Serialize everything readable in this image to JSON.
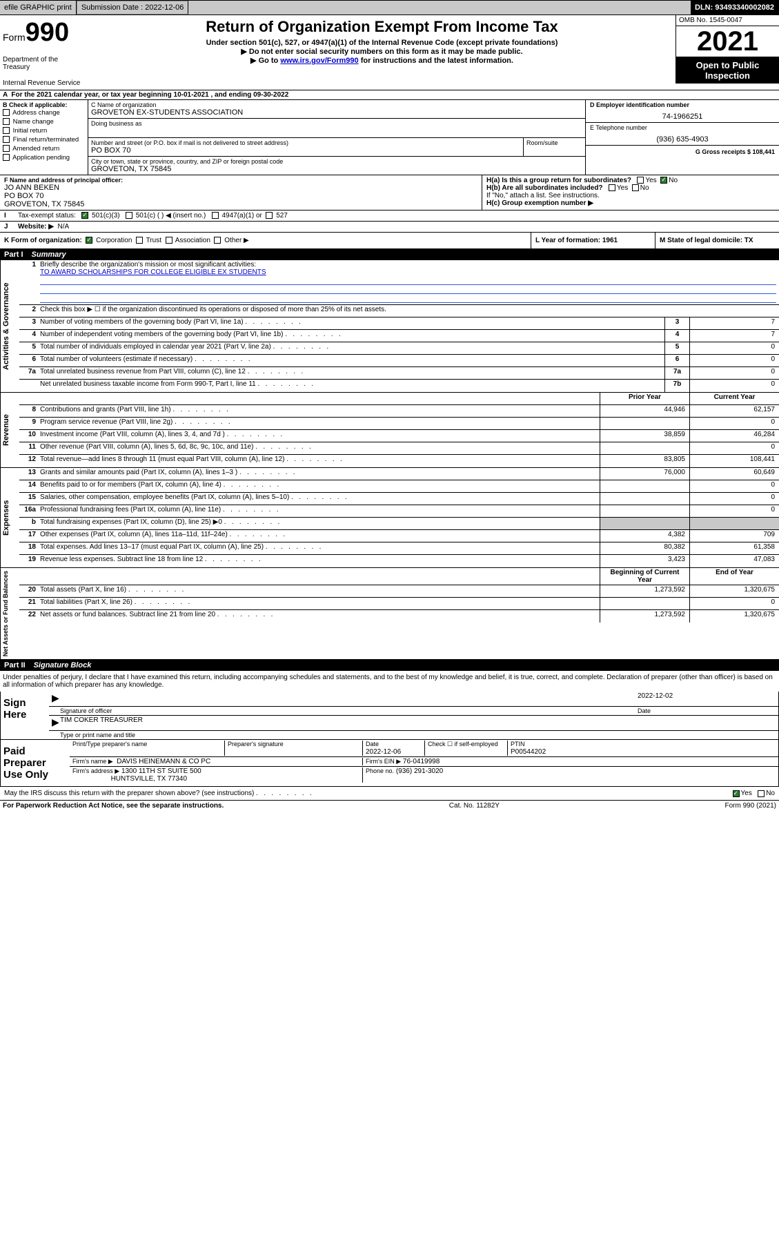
{
  "topbar": {
    "efile": "efile GRAPHIC print",
    "submission_label": "Submission Date : 2022-12-06",
    "dln_label": "DLN: 93493340002082"
  },
  "header": {
    "form_label": "Form",
    "form_number": "990",
    "title": "Return of Organization Exempt From Income Tax",
    "subtitle": "Under section 501(c), 527, or 4947(a)(1) of the Internal Revenue Code (except private foundations)",
    "line2": "Do not enter social security numbers on this form as it may be made public.",
    "line3_prefix": "Go to ",
    "line3_link": "www.irs.gov/Form990",
    "line3_suffix": " for instructions and the latest information.",
    "dept": "Department of the Treasury",
    "irs": "Internal Revenue Service",
    "omb": "OMB No. 1545-0047",
    "year": "2021",
    "inspect1": "Open to Public",
    "inspect2": "Inspection"
  },
  "meta": {
    "a_line": "For the 2021 calendar year, or tax year beginning 10-01-2021    , and ending 09-30-2022",
    "b_label": "B Check if applicable:",
    "b_items": [
      "Address change",
      "Name change",
      "Initial return",
      "Final return/terminated",
      "Amended return",
      "Application pending"
    ],
    "c_name_label": "C Name of organization",
    "c_name": "GROVETON EX-STUDENTS ASSOCIATION",
    "dba_label": "Doing business as",
    "addr_label": "Number and street (or P.O. box if mail is not delivered to street address)",
    "room_label": "Room/suite",
    "addr": "PO BOX 70",
    "city_label": "City or town, state or province, country, and ZIP or foreign postal code",
    "city": "GROVETON, TX  75845",
    "d_label": "D Employer identification number",
    "d_value": "74-1966251",
    "e_label": "E Telephone number",
    "e_value": "(936) 635-4903",
    "g_label": "G Gross receipts $ 108,441",
    "f_label": "F Name and address of principal officer:",
    "f_name": "JO ANN BEKEN",
    "f_addr1": "PO BOX 70",
    "f_addr2": "GROVETON, TX  75845",
    "ha_label": "H(a)  Is this a group return for subordinates?",
    "hb_label": "H(b)  Are all subordinates included?",
    "hb_note": "If \"No,\" attach a list. See instructions.",
    "hc_label": "H(c)  Group exemption number ▶",
    "yes": "Yes",
    "no": "No",
    "i_label": "Tax-exempt status:",
    "i_501c3": "501(c)(3)",
    "i_501c": "501(c) (  ) ◀ (insert no.)",
    "i_4947": "4947(a)(1) or",
    "i_527": "527",
    "j_label": "Website: ▶",
    "j_value": "N/A",
    "k_label": "K Form of organization:",
    "k_corp": "Corporation",
    "k_trust": "Trust",
    "k_assoc": "Association",
    "k_other": "Other ▶",
    "l_label": "L Year of formation: 1961",
    "m_label": "M State of legal domicile: TX"
  },
  "part1": {
    "id": "Part I",
    "title": "Summary",
    "q1_label": "Briefly describe the organization's mission or most significant activities:",
    "q1_value": "TO AWARD SCHOLARSHIPS FOR COLLEGE ELIGIBLE EX STUDENTS",
    "q2": "Check this box ▶ ☐  if the organization discontinued its operations or disposed of more than 25% of its net assets.",
    "sidelabel_gov": "Activities & Governance",
    "sidelabel_rev": "Revenue",
    "sidelabel_exp": "Expenses",
    "sidelabel_net": "Net Assets or Fund Balances",
    "rows_gov": [
      {
        "n": "3",
        "desc": "Number of voting members of the governing body (Part VI, line 1a)",
        "box": "3",
        "val": "7"
      },
      {
        "n": "4",
        "desc": "Number of independent voting members of the governing body (Part VI, line 1b)",
        "box": "4",
        "val": "7"
      },
      {
        "n": "5",
        "desc": "Total number of individuals employed in calendar year 2021 (Part V, line 2a)",
        "box": "5",
        "val": "0"
      },
      {
        "n": "6",
        "desc": "Total number of volunteers (estimate if necessary)",
        "box": "6",
        "val": "0"
      },
      {
        "n": "7a",
        "desc": "Total unrelated business revenue from Part VIII, column (C), line 12",
        "box": "7a",
        "val": "0"
      },
      {
        "n": "",
        "desc": "Net unrelated business taxable income from Form 990-T, Part I, line 11",
        "box": "7b",
        "val": "0"
      }
    ],
    "col_prior": "Prior Year",
    "col_current": "Current Year",
    "rows_rev": [
      {
        "n": "8",
        "desc": "Contributions and grants (Part VIII, line 1h)",
        "prior": "44,946",
        "cur": "62,157"
      },
      {
        "n": "9",
        "desc": "Program service revenue (Part VIII, line 2g)",
        "prior": "",
        "cur": "0"
      },
      {
        "n": "10",
        "desc": "Investment income (Part VIII, column (A), lines 3, 4, and 7d )",
        "prior": "38,859",
        "cur": "46,284"
      },
      {
        "n": "11",
        "desc": "Other revenue (Part VIII, column (A), lines 5, 6d, 8c, 9c, 10c, and 11e)",
        "prior": "",
        "cur": "0"
      },
      {
        "n": "12",
        "desc": "Total revenue—add lines 8 through 11 (must equal Part VIII, column (A), line 12)",
        "prior": "83,805",
        "cur": "108,441"
      }
    ],
    "rows_exp": [
      {
        "n": "13",
        "desc": "Grants and similar amounts paid (Part IX, column (A), lines 1–3 )",
        "prior": "76,000",
        "cur": "60,649"
      },
      {
        "n": "14",
        "desc": "Benefits paid to or for members (Part IX, column (A), line 4)",
        "prior": "",
        "cur": "0"
      },
      {
        "n": "15",
        "desc": "Salaries, other compensation, employee benefits (Part IX, column (A), lines 5–10)",
        "prior": "",
        "cur": "0"
      },
      {
        "n": "16a",
        "desc": "Professional fundraising fees (Part IX, column (A), line 11e)",
        "prior": "",
        "cur": "0"
      },
      {
        "n": "b",
        "desc": "Total fundraising expenses (Part IX, column (D), line 25) ▶0",
        "prior": "SHADE",
        "cur": "SHADE"
      },
      {
        "n": "17",
        "desc": "Other expenses (Part IX, column (A), lines 11a–11d, 11f–24e)",
        "prior": "4,382",
        "cur": "709"
      },
      {
        "n": "18",
        "desc": "Total expenses. Add lines 13–17 (must equal Part IX, column (A), line 25)",
        "prior": "80,382",
        "cur": "61,358"
      },
      {
        "n": "19",
        "desc": "Revenue less expenses. Subtract line 18 from line 12",
        "prior": "3,423",
        "cur": "47,083"
      }
    ],
    "col_begin": "Beginning of Current Year",
    "col_end": "End of Year",
    "rows_net": [
      {
        "n": "20",
        "desc": "Total assets (Part X, line 16)",
        "prior": "1,273,592",
        "cur": "1,320,675"
      },
      {
        "n": "21",
        "desc": "Total liabilities (Part X, line 26)",
        "prior": "",
        "cur": "0"
      },
      {
        "n": "22",
        "desc": "Net assets or fund balances. Subtract line 21 from line 20",
        "prior": "1,273,592",
        "cur": "1,320,675"
      }
    ]
  },
  "part2": {
    "id": "Part II",
    "title": "Signature Block",
    "decl": "Under penalties of perjury, I declare that I have examined this return, including accompanying schedules and statements, and to the best of my knowledge and belief, it is true, correct, and complete. Declaration of preparer (other than officer) is based on all information of which preparer has any knowledge.",
    "sign_here": "Sign Here",
    "sig_officer": "Signature of officer",
    "sig_date_label": "Date",
    "sig_date": "2022-12-02",
    "officer_name": "TIM COKER  TREASURER",
    "officer_name_label": "Type or print name and title",
    "paid": "Paid Preparer Use Only",
    "col_printname": "Print/Type preparer's name",
    "col_prepsig": "Preparer's signature",
    "col_date": "Date",
    "date2": "2022-12-06",
    "check_self": "Check ☐ if self-employed",
    "ptin_label": "PTIN",
    "ptin": "P00544202",
    "firm_name_label": "Firm's name    ▶",
    "firm_name": "DAVIS HEINEMANN & CO PC",
    "firm_ein_label": "Firm's EIN ▶",
    "firm_ein": "76-0419998",
    "firm_addr_label": "Firm's address ▶",
    "firm_addr1": "1300 11TH ST SUITE 500",
    "firm_addr2": "HUNTSVILLE, TX  77340",
    "phone_label": "Phone no.",
    "phone": "(936) 291-3020",
    "may_irs": "May the IRS discuss this return with the preparer shown above? (see instructions)"
  },
  "footer": {
    "left": "For Paperwork Reduction Act Notice, see the separate instructions.",
    "mid": "Cat. No. 11282Y",
    "right": "Form 990 (2021)"
  }
}
